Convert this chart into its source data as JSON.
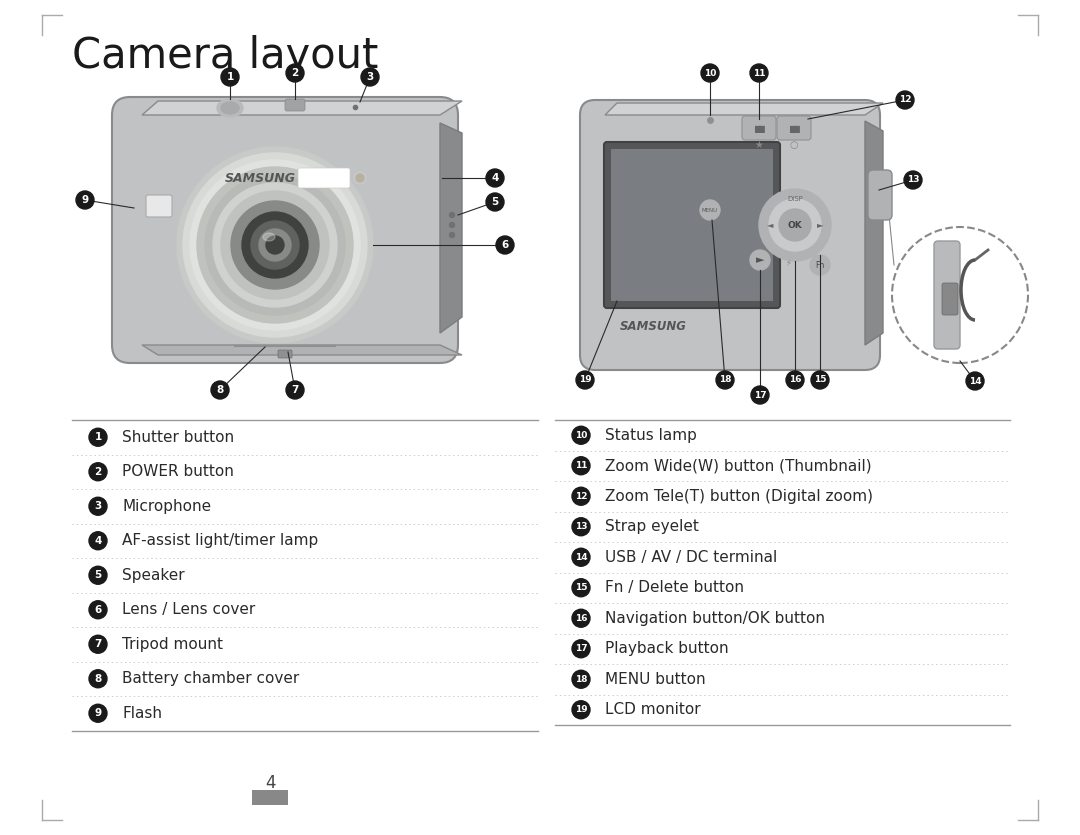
{
  "title": "Camera layout",
  "page_number": "4",
  "bg_color": "#ffffff",
  "title_color": "#1a1a1a",
  "title_fontsize": 30,
  "label_fontsize": 11,
  "text_color": "#2a2a2a",
  "circle_bg": "#1a1a1a",
  "circle_fg": "#ffffff",
  "separator_color": "#999999",
  "dotted_color": "#cccccc",
  "cam_body": "#c0c2c4",
  "cam_body_mid": "#a8aaac",
  "cam_body_dark": "#888a8c",
  "cam_body_shadow": "#7a7c7e",
  "cam_screen": "#7a7e82",
  "cam_screen_dark": "#606468",
  "samsung_color": "#555555",
  "left_items": [
    {
      "num": "1",
      "text": "Shutter button"
    },
    {
      "num": "2",
      "text": "POWER button"
    },
    {
      "num": "3",
      "text": "Microphone"
    },
    {
      "num": "4",
      "text": "AF-assist light/timer lamp"
    },
    {
      "num": "5",
      "text": "Speaker"
    },
    {
      "num": "6",
      "text": "Lens / Lens cover"
    },
    {
      "num": "7",
      "text": "Tripod mount"
    },
    {
      "num": "8",
      "text": "Battery chamber cover"
    },
    {
      "num": "9",
      "text": "Flash"
    }
  ],
  "right_items": [
    {
      "num": "10",
      "text": "Status lamp"
    },
    {
      "num": "11",
      "text": "Zoom Wide(W) button (Thumbnail)"
    },
    {
      "num": "12",
      "text": "Zoom Tele(T) button (Digital zoom)"
    },
    {
      "num": "13",
      "text": "Strap eyelet"
    },
    {
      "num": "14",
      "text": "USB / AV / DC terminal"
    },
    {
      "num": "15",
      "text": "Fn / Delete button"
    },
    {
      "num": "16",
      "text": "Navigation button/OK button"
    },
    {
      "num": "17",
      "text": "Playback button"
    },
    {
      "num": "18",
      "text": "MENU button"
    },
    {
      "num": "19",
      "text": "LCD monitor"
    }
  ]
}
